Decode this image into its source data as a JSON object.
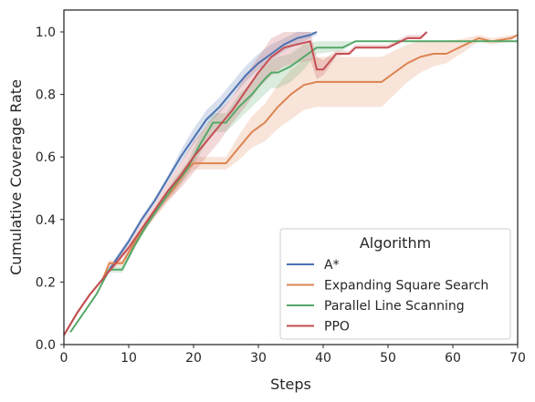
{
  "chart_data": {
    "type": "line",
    "xlabel": "Steps",
    "ylabel": "Cumulative Coverage Rate",
    "xlim": [
      0,
      70
    ],
    "ylim": [
      0,
      1.07
    ],
    "xticks": [
      0,
      10,
      20,
      30,
      40,
      50,
      60,
      70
    ],
    "yticks": [
      0.0,
      0.2,
      0.4,
      0.6,
      0.8,
      1.0
    ],
    "grid": false,
    "legend": {
      "title": "Algorithm",
      "placement": "lower-right"
    },
    "series": [
      {
        "name": "A*",
        "color": "#4c72b0",
        "x": [
          0,
          2,
          4,
          6,
          8,
          10,
          12,
          14,
          16,
          18,
          20,
          22,
          24,
          26,
          28,
          30,
          32,
          34,
          36,
          38,
          39
        ],
        "y": [
          0.03,
          0.1,
          0.16,
          0.21,
          0.27,
          0.33,
          0.4,
          0.46,
          0.53,
          0.6,
          0.66,
          0.72,
          0.76,
          0.81,
          0.86,
          0.9,
          0.93,
          0.96,
          0.98,
          0.99,
          1.0
        ],
        "lower": [
          0.03,
          0.1,
          0.16,
          0.21,
          0.26,
          0.32,
          0.39,
          0.45,
          0.52,
          0.58,
          0.64,
          0.7,
          0.74,
          0.79,
          0.84,
          0.88,
          0.91,
          0.94,
          0.96,
          0.98,
          0.99
        ],
        "upper": [
          0.03,
          0.1,
          0.16,
          0.21,
          0.28,
          0.34,
          0.41,
          0.47,
          0.54,
          0.62,
          0.69,
          0.75,
          0.79,
          0.84,
          0.89,
          0.93,
          0.96,
          0.98,
          1.0,
          1.0,
          1.0
        ]
      },
      {
        "name": "Expanding Square Search",
        "color": "#dd8452",
        "x": [
          0,
          2,
          4,
          6,
          7,
          9,
          11,
          13,
          15,
          17,
          19,
          20,
          22,
          25,
          27,
          29,
          31,
          33,
          35,
          37,
          39,
          40,
          45,
          49,
          51,
          53,
          55,
          57,
          59,
          62,
          64,
          66,
          69,
          70
        ],
        "y": [
          0.03,
          0.1,
          0.16,
          0.21,
          0.26,
          0.26,
          0.33,
          0.39,
          0.45,
          0.5,
          0.56,
          0.58,
          0.58,
          0.58,
          0.63,
          0.68,
          0.71,
          0.76,
          0.8,
          0.83,
          0.84,
          0.84,
          0.84,
          0.84,
          0.87,
          0.9,
          0.92,
          0.93,
          0.93,
          0.96,
          0.98,
          0.97,
          0.98,
          0.99
        ],
        "lower": [
          0.03,
          0.1,
          0.16,
          0.21,
          0.25,
          0.25,
          0.32,
          0.38,
          0.43,
          0.48,
          0.54,
          0.56,
          0.56,
          0.56,
          0.59,
          0.63,
          0.65,
          0.69,
          0.72,
          0.75,
          0.76,
          0.76,
          0.76,
          0.76,
          0.8,
          0.84,
          0.87,
          0.89,
          0.9,
          0.94,
          0.97,
          0.96,
          0.97,
          0.99
        ],
        "upper": [
          0.03,
          0.1,
          0.16,
          0.21,
          0.27,
          0.27,
          0.34,
          0.4,
          0.47,
          0.52,
          0.58,
          0.6,
          0.6,
          0.6,
          0.67,
          0.73,
          0.77,
          0.83,
          0.88,
          0.91,
          0.92,
          0.92,
          0.92,
          0.92,
          0.94,
          0.96,
          0.97,
          0.97,
          0.97,
          0.98,
          0.99,
          0.98,
          0.99,
          0.99
        ]
      },
      {
        "name": "Parallel Line Scanning",
        "color": "#55a868",
        "x": [
          1,
          3,
          5,
          7,
          9,
          11,
          13,
          15,
          17,
          19,
          21,
          23,
          25,
          27,
          29,
          31,
          32,
          33,
          35,
          37,
          39,
          43,
          45,
          60,
          70
        ],
        "y": [
          0.04,
          0.1,
          0.16,
          0.24,
          0.24,
          0.32,
          0.39,
          0.45,
          0.51,
          0.56,
          0.64,
          0.71,
          0.71,
          0.76,
          0.8,
          0.85,
          0.87,
          0.87,
          0.89,
          0.92,
          0.95,
          0.95,
          0.97,
          0.97,
          0.97
        ],
        "lower": [
          0.04,
          0.1,
          0.16,
          0.23,
          0.23,
          0.31,
          0.38,
          0.44,
          0.49,
          0.54,
          0.61,
          0.68,
          0.68,
          0.72,
          0.76,
          0.8,
          0.82,
          0.82,
          0.84,
          0.88,
          0.93,
          0.94,
          0.97,
          0.97,
          0.97
        ],
        "upper": [
          0.04,
          0.1,
          0.16,
          0.25,
          0.25,
          0.33,
          0.4,
          0.46,
          0.53,
          0.58,
          0.67,
          0.74,
          0.74,
          0.8,
          0.84,
          0.89,
          0.91,
          0.92,
          0.93,
          0.96,
          0.97,
          0.97,
          0.97,
          0.97,
          0.97
        ]
      },
      {
        "name": "PPO",
        "color": "#c44e52",
        "x": [
          0,
          2,
          4,
          6,
          8,
          10,
          12,
          14,
          16,
          18,
          20,
          22,
          24,
          26,
          28,
          30,
          32,
          34,
          36,
          38,
          39,
          40,
          42,
          44,
          45,
          50,
          52,
          53,
          55,
          56
        ],
        "y": [
          0.03,
          0.1,
          0.16,
          0.21,
          0.26,
          0.31,
          0.37,
          0.43,
          0.49,
          0.54,
          0.6,
          0.65,
          0.7,
          0.75,
          0.81,
          0.87,
          0.92,
          0.95,
          0.96,
          0.97,
          0.88,
          0.88,
          0.93,
          0.93,
          0.95,
          0.95,
          0.97,
          0.98,
          0.98,
          1.0
        ],
        "lower": [
          0.03,
          0.1,
          0.16,
          0.21,
          0.25,
          0.3,
          0.35,
          0.41,
          0.46,
          0.5,
          0.55,
          0.6,
          0.65,
          0.71,
          0.76,
          0.82,
          0.86,
          0.89,
          0.9,
          0.91,
          0.85,
          0.86,
          0.92,
          0.93,
          0.95,
          0.95,
          0.97,
          0.98,
          0.98,
          1.0
        ],
        "upper": [
          0.03,
          0.1,
          0.16,
          0.21,
          0.27,
          0.32,
          0.39,
          0.45,
          0.52,
          0.58,
          0.65,
          0.7,
          0.75,
          0.79,
          0.86,
          0.92,
          0.98,
          1.0,
          1.0,
          1.0,
          0.92,
          0.91,
          0.94,
          0.94,
          0.96,
          0.96,
          0.98,
          0.99,
          0.99,
          1.0
        ]
      }
    ]
  }
}
